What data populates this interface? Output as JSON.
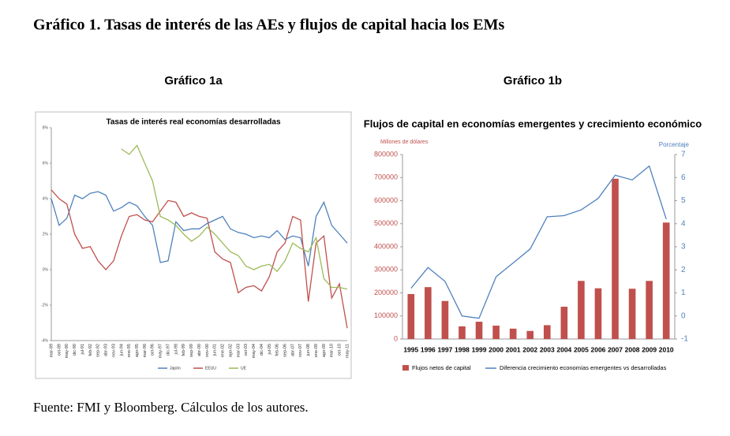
{
  "title": "Gráfico 1. Tasas de interés de las AEs y flujos de capital hacia los EMs",
  "chart_data": [
    {
      "type": "line",
      "label": "Gráfico 1a",
      "title": "Tasas de interés real economías desarrolladas",
      "categories": [
        "mar-89",
        "oct-89",
        "may-90",
        "dic-90",
        "jul-91",
        "feb-92",
        "sep-92",
        "abr-93",
        "nov-93",
        "jun-94",
        "ene-95",
        "ago-95",
        "mar-96",
        "oct-96",
        "may-97",
        "dic-97",
        "jul-98",
        "feb-99",
        "sep-99",
        "abr-00",
        "nov-00",
        "jun-01",
        "ene-02",
        "ago-02",
        "mar-03",
        "oct-03",
        "may-04",
        "dic-04",
        "jul-05",
        "feb-06",
        "sep-06",
        "abr-07",
        "nov-07",
        "jun-08",
        "ene-09",
        "ago-09",
        "mar-10",
        "oct-10",
        "may-11"
      ],
      "series": [
        {
          "name": "Japón",
          "color": "#4f81bd",
          "values": [
            4.0,
            2.5,
            2.9,
            4.2,
            4.0,
            4.3,
            4.4,
            4.2,
            3.3,
            3.5,
            3.8,
            3.6,
            3.0,
            2.5,
            0.4,
            0.5,
            2.7,
            2.2,
            2.3,
            2.3,
            2.6,
            2.8,
            3.0,
            2.3,
            2.1,
            2.0,
            1.8,
            1.9,
            1.8,
            2.2,
            1.7,
            1.9,
            1.8,
            0.2,
            3.0,
            3.8,
            2.5,
            2.0,
            1.5
          ]
        },
        {
          "name": "EEUU",
          "color": "#c0504d",
          "values": [
            4.5,
            4.0,
            3.7,
            2.0,
            1.2,
            1.3,
            0.5,
            0.0,
            0.5,
            1.9,
            3.0,
            3.1,
            2.8,
            2.7,
            3.3,
            3.9,
            3.8,
            3.0,
            3.2,
            3.0,
            2.9,
            1.0,
            0.6,
            0.4,
            -1.3,
            -1.0,
            -0.9,
            -1.2,
            -0.4,
            1.0,
            1.5,
            3.0,
            2.8,
            -1.8,
            1.5,
            1.9,
            -1.6,
            -0.8,
            -3.3
          ]
        },
        {
          "name": "UE",
          "color": "#9bbb59",
          "values": [
            null,
            null,
            null,
            null,
            null,
            null,
            null,
            null,
            null,
            6.8,
            6.5,
            7.0,
            6.0,
            5.0,
            3.0,
            2.8,
            2.5,
            2.0,
            1.6,
            1.9,
            2.4,
            2.0,
            1.5,
            1.0,
            0.8,
            0.2,
            0.0,
            0.2,
            0.3,
            -0.1,
            0.5,
            1.5,
            1.2,
            1.0,
            1.8,
            -0.5,
            -1.0,
            -1.0,
            -1.1
          ]
        }
      ],
      "ylim": [
        -4,
        8
      ],
      "yticks": [
        {
          "value": -4,
          "label": "-4%"
        },
        {
          "value": -2,
          "label": "-2%"
        },
        {
          "value": 0,
          "label": "0%"
        },
        {
          "value": 2,
          "label": "2%"
        },
        {
          "value": 4,
          "label": "4%"
        },
        {
          "value": 6,
          "label": "6%"
        },
        {
          "value": 8,
          "label": "8%"
        }
      ],
      "legend": "bottom"
    },
    {
      "type": "combo",
      "label": "Gráfico 1b",
      "title": "Flujos de capital en economías emergentes y crecimiento económico",
      "ylabel": "Millones de dólares",
      "y2label": "Porcentaje",
      "categories": [
        "1995",
        "1996",
        "1997",
        "1998",
        "1999",
        "2000",
        "2001",
        "2002",
        "2003",
        "2004",
        "2005",
        "2006",
        "2007",
        "2008",
        "2009",
        "2010"
      ],
      "series": [
        {
          "name": "Flujos netos de capital",
          "type": "bar",
          "color": "#c0504d",
          "values": [
            195000,
            225000,
            165000,
            55000,
            75000,
            58000,
            45000,
            35000,
            60000,
            140000,
            252000,
            220000,
            695000,
            218000,
            252000,
            505000
          ]
        },
        {
          "name": "Diferencia crecimiento economías emergentes vs desarrolladas",
          "type": "line",
          "axis": "y2",
          "color": "#4f81bd",
          "values": [
            1.2,
            2.1,
            1.5,
            0.0,
            -0.1,
            1.7,
            2.3,
            2.9,
            4.3,
            4.35,
            4.6,
            5.1,
            6.1,
            5.9,
            6.5,
            4.2
          ]
        }
      ],
      "ylim": [
        0,
        800000
      ],
      "yticks": [
        0,
        100000,
        200000,
        300000,
        400000,
        500000,
        600000,
        700000,
        800000
      ],
      "y2lim": [
        -1,
        7
      ],
      "y2ticks": [
        -1,
        0,
        1,
        2,
        3,
        4,
        5,
        6,
        7
      ],
      "legend": "bottom"
    }
  ],
  "source": "Fuente: FMI y Bloomberg. Cálculos de los autores."
}
